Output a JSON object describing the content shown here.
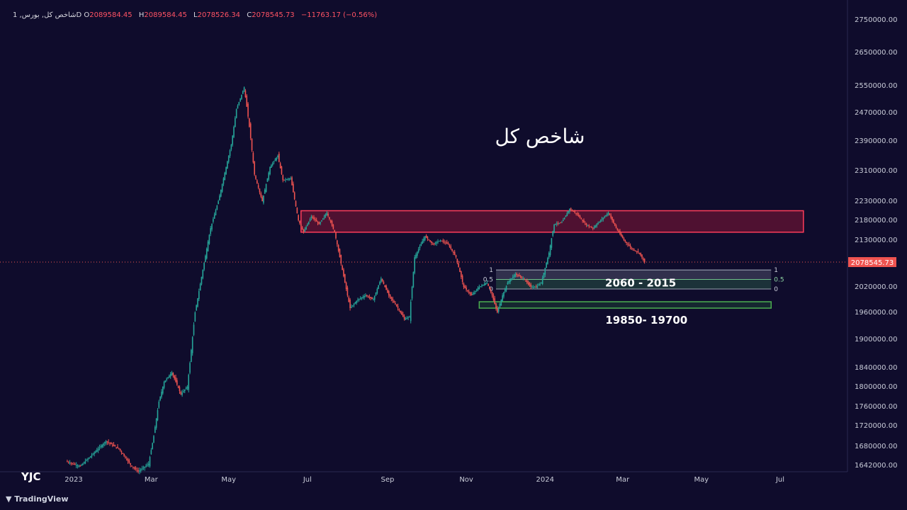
{
  "header": {
    "symbol": "شاخص كل, بورس, 1D",
    "open_label": "O",
    "open": "2089584.45",
    "high_label": "H",
    "high": "2089584.45",
    "low_label": "L",
    "low": "2078526.34",
    "close_label": "C",
    "close": "2078545.73",
    "change": "−11763.17 (−0.56%)"
  },
  "chart_data": {
    "type": "candlestick",
    "title": "شاخص كل",
    "price_axis": {
      "ticks": [
        {
          "v": 2750000,
          "label": "2750000.00"
        },
        {
          "v": 2650000,
          "label": "2650000.00"
        },
        {
          "v": 2550000,
          "label": "2550000.00"
        },
        {
          "v": 2470000,
          "label": "2470000.00"
        },
        {
          "v": 2390000,
          "label": "2390000.00"
        },
        {
          "v": 2310000,
          "label": "2310000.00"
        },
        {
          "v": 2230000,
          "label": "2230000.00"
        },
        {
          "v": 2180000,
          "label": "2180000.00"
        },
        {
          "v": 2130000,
          "label": "2130000.00"
        },
        {
          "v": 2020000,
          "label": "2020000.00"
        },
        {
          "v": 1960000,
          "label": "1960000.00"
        },
        {
          "v": 1900000,
          "label": "1900000.00"
        },
        {
          "v": 1840000,
          "label": "1840000.00"
        },
        {
          "v": 1800000,
          "label": "1800000.00"
        },
        {
          "v": 1760000,
          "label": "1760000.00"
        },
        {
          "v": 1720000,
          "label": "1720000.00"
        },
        {
          "v": 1680000,
          "label": "1680000.00"
        },
        {
          "v": 1642000,
          "label": "1642000.00"
        }
      ],
      "current_price_label": "2078545.73",
      "current_price": 2078545.73
    },
    "time_axis": {
      "ticks": [
        {
          "t": 0,
          "label": "2023"
        },
        {
          "t": 60,
          "label": "Mar"
        },
        {
          "t": 120,
          "label": "May"
        },
        {
          "t": 181,
          "label": "Jul"
        },
        {
          "t": 243,
          "label": "Sep"
        },
        {
          "t": 304,
          "label": "Nov"
        },
        {
          "t": 365,
          "label": "2024"
        },
        {
          "t": 425,
          "label": "Mar"
        },
        {
          "t": 486,
          "label": "May"
        },
        {
          "t": 547,
          "label": "Jul"
        }
      ]
    },
    "price_path": [
      [
        -6,
        1650000
      ],
      [
        5,
        1640000
      ],
      [
        15,
        1665000
      ],
      [
        25,
        1690000
      ],
      [
        35,
        1675000
      ],
      [
        45,
        1640000
      ],
      [
        50,
        1630000
      ],
      [
        58,
        1645000
      ],
      [
        62,
        1700000
      ],
      [
        66,
        1770000
      ],
      [
        70,
        1810000
      ],
      [
        76,
        1830000
      ],
      [
        83,
        1785000
      ],
      [
        88,
        1800000
      ],
      [
        90,
        1850000
      ],
      [
        94,
        1960000
      ],
      [
        100,
        2060000
      ],
      [
        106,
        2160000
      ],
      [
        112,
        2230000
      ],
      [
        118,
        2320000
      ],
      [
        122,
        2380000
      ],
      [
        126,
        2480000
      ],
      [
        132,
        2545000
      ],
      [
        136,
        2430000
      ],
      [
        140,
        2300000
      ],
      [
        146,
        2230000
      ],
      [
        152,
        2320000
      ],
      [
        158,
        2350000
      ],
      [
        162,
        2285000
      ],
      [
        168,
        2290000
      ],
      [
        174,
        2180000
      ],
      [
        178,
        2150000
      ],
      [
        184,
        2190000
      ],
      [
        190,
        2170000
      ],
      [
        196,
        2200000
      ],
      [
        202,
        2150000
      ],
      [
        208,
        2060000
      ],
      [
        214,
        1970000
      ],
      [
        220,
        1990000
      ],
      [
        226,
        2000000
      ],
      [
        232,
        1990000
      ],
      [
        238,
        2040000
      ],
      [
        244,
        2000000
      ],
      [
        250,
        1975000
      ],
      [
        256,
        1945000
      ],
      [
        260,
        1950000
      ],
      [
        264,
        2090000
      ],
      [
        272,
        2140000
      ],
      [
        278,
        2120000
      ],
      [
        284,
        2130000
      ],
      [
        290,
        2120000
      ],
      [
        296,
        2090000
      ],
      [
        302,
        2020000
      ],
      [
        308,
        2000000
      ],
      [
        314,
        2020000
      ],
      [
        320,
        2030000
      ],
      [
        324,
        2000000
      ],
      [
        328,
        1960000
      ],
      [
        332,
        2000000
      ],
      [
        336,
        2030000
      ],
      [
        342,
        2050000
      ],
      [
        348,
        2040000
      ],
      [
        354,
        2020000
      ],
      [
        358,
        2020000
      ],
      [
        362,
        2030000
      ],
      [
        368,
        2100000
      ],
      [
        372,
        2170000
      ],
      [
        378,
        2175000
      ],
      [
        384,
        2210000
      ],
      [
        390,
        2195000
      ],
      [
        396,
        2170000
      ],
      [
        402,
        2160000
      ],
      [
        408,
        2180000
      ],
      [
        414,
        2200000
      ],
      [
        420,
        2160000
      ],
      [
        426,
        2130000
      ],
      [
        432,
        2110000
      ],
      [
        438,
        2100000
      ],
      [
        442,
        2078545
      ]
    ],
    "resistance_zone": {
      "top": 2205000,
      "bottom": 2150000,
      "t_start": 176,
      "t_end": 565
    },
    "fib_zone": {
      "top": 2060000,
      "bottom": 2015000,
      "t_start": 327,
      "t_end": 540,
      "levels": [
        "1",
        "0.5",
        "0"
      ],
      "label": "2060 - 2015"
    },
    "support_zone": {
      "top": 1985000,
      "bottom": 1970000,
      "t_start": 314,
      "t_end": 540,
      "label": "19850- 19700"
    },
    "colors": {
      "up": "#26a69a",
      "down": "#ef5350",
      "zone_red": "#ff3c5a",
      "zone_green": "#4caf50",
      "zone_fib": "#c0c4d0"
    }
  },
  "footer": {
    "brand": "TradingView",
    "logo_text": "YJC"
  }
}
